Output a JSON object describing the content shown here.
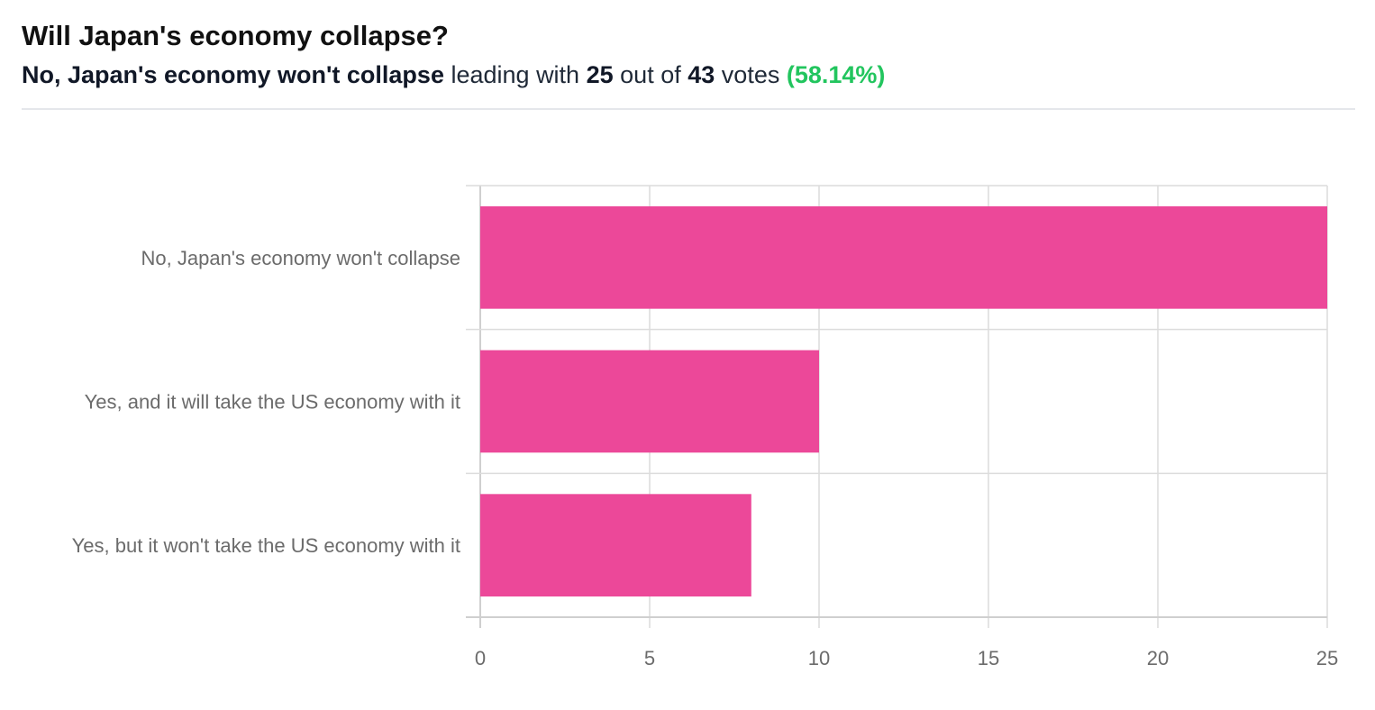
{
  "header": {
    "title": "Will Japan's economy collapse?",
    "leader": "No, Japan's economy won't collapse",
    "leading_text": "leading with",
    "leader_votes": "25",
    "out_of_text": "out of",
    "total_votes": "43",
    "votes_text": "votes",
    "percent": "(58.14%)"
  },
  "colors": {
    "bar": "#ec4899",
    "percent": "#22c55e"
  },
  "chart_data": {
    "type": "bar",
    "orientation": "horizontal",
    "title": "Will Japan's economy collapse?",
    "xlabel": "",
    "ylabel": "",
    "categories": [
      "No, Japan's economy won't collapse",
      "Yes, and it will take the US economy with it",
      "Yes, but it won't take the US economy with it"
    ],
    "values": [
      25,
      10,
      8
    ],
    "xlim": [
      0,
      25
    ],
    "xticks": [
      0,
      5,
      10,
      15,
      20,
      25
    ],
    "grid": true,
    "legend": "none"
  }
}
